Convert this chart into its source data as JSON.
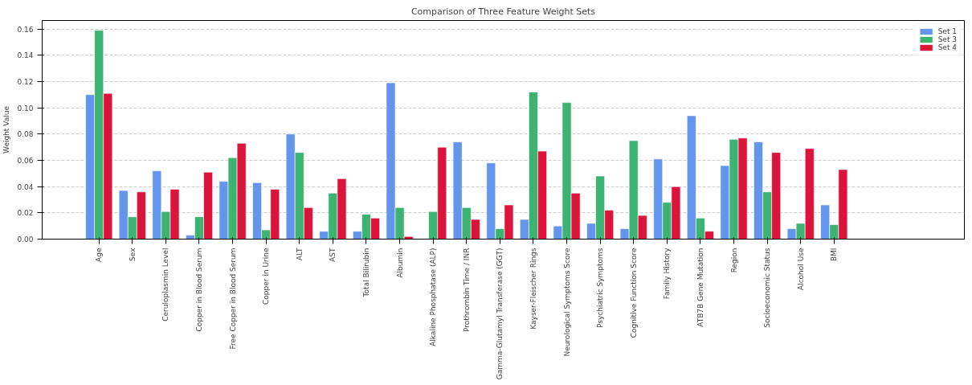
{
  "chart_data": {
    "type": "bar",
    "title": "Comparison of Three Feature Weight Sets",
    "ylabel": "Weight Value",
    "categories": [
      "Age",
      "Sex",
      "Ceruloplasmin Level",
      "Copper in Blood Serum",
      "Free Copper in Blood Serum",
      "Copper in Urine",
      "ALT",
      "AST",
      "Total Bilirubin",
      "Albumin",
      "Alkaline Phosphatase (ALP)",
      "Prothrombin Time / INR",
      "Gamma-Glutamyl Transferase (GGT)",
      "Kayser-Fleischer Rings",
      "Neurological Symptoms Score",
      "Psychiatric Symptoms",
      "Cognitive Function Score",
      "Family History",
      "ATB7B Gene Mutation",
      "Region",
      "Socioeconomic Status",
      "Alcohol Use",
      "BMI"
    ],
    "series": [
      {
        "name": "Set 1",
        "color": "#6495ed",
        "values": [
          0.11,
          0.037,
          0.052,
          0.003,
          0.044,
          0.043,
          0.08,
          0.006,
          0.006,
          0.119,
          null,
          0.074,
          0.058,
          0.015,
          0.01,
          0.012,
          0.008,
          0.061,
          0.094,
          0.056,
          0.074,
          0.008,
          0.026
        ]
      },
      {
        "name": "Set 3",
        "color": "#3cb371",
        "values": [
          0.159,
          0.017,
          0.021,
          0.017,
          0.062,
          0.007,
          0.066,
          0.035,
          0.019,
          0.024,
          0.021,
          0.024,
          0.008,
          0.112,
          0.104,
          0.048,
          0.075,
          0.028,
          0.016,
          0.076,
          0.036,
          0.012,
          0.011
        ]
      },
      {
        "name": "Set 4",
        "color": "#dc143c",
        "values": [
          0.111,
          0.036,
          0.038,
          0.051,
          0.073,
          0.038,
          0.024,
          0.046,
          0.016,
          0.002,
          0.07,
          0.015,
          0.026,
          0.067,
          0.035,
          0.022,
          0.018,
          0.04,
          0.006,
          0.077,
          0.066,
          0.069,
          0.053
        ]
      }
    ],
    "ylim": [
      0,
      0.1665
    ],
    "yticks": [
      {
        "value": 0,
        "label": "0.00"
      },
      {
        "value": 0.02,
        "label": "0.02"
      },
      {
        "value": 0.04,
        "label": "0.04"
      },
      {
        "value": 0.06,
        "label": "0.06"
      },
      {
        "value": 0.08,
        "label": "0.08"
      },
      {
        "value": 0.1,
        "label": "0.10"
      },
      {
        "value": 0.12,
        "label": "0.12"
      },
      {
        "value": 0.14,
        "label": "0.14"
      },
      {
        "value": 0.16,
        "label": "0.16"
      }
    ],
    "grid": "y",
    "legend": "top right"
  }
}
